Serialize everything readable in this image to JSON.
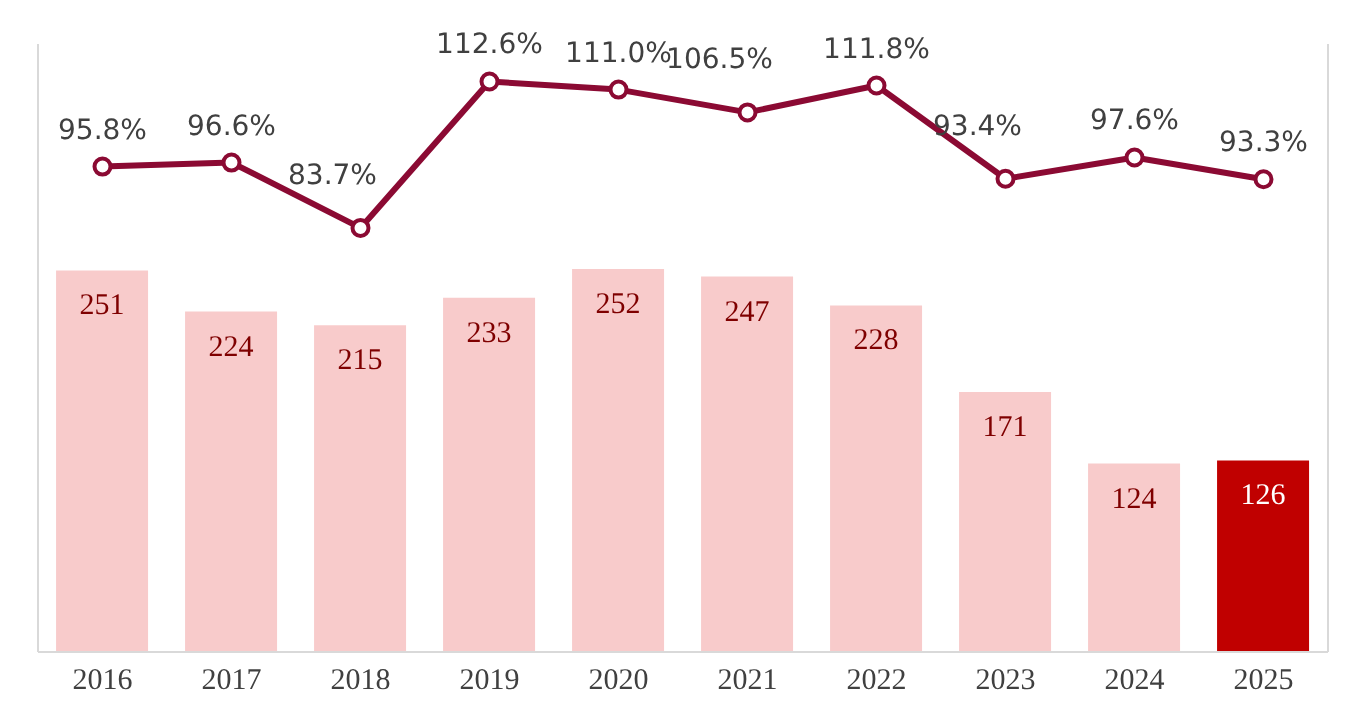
{
  "chart_data": {
    "type": "bar",
    "categories": [
      "2016",
      "2017",
      "2018",
      "2019",
      "2020",
      "2021",
      "2022",
      "2023",
      "2024",
      "2025"
    ],
    "series": [
      {
        "color": "#f8cbcb",
        "colors": [
          "#f8cbcb",
          "#f8cbcb",
          "#f8cbcb",
          "#f8cbcb",
          "#f8cbcb",
          "#f8cbcb",
          "#f8cbcb",
          "#f8cbcb",
          "#f8cbcb",
          "#c00000"
        ],
        "values": [
          251,
          224,
          215,
          233,
          252,
          247,
          228,
          171,
          124,
          126
        ],
        "value_labels": [
          "251",
          "224",
          "215",
          "233",
          "252",
          "247",
          "228",
          "171",
          "124",
          "126"
        ]
      },
      {
        "type": "line",
        "axis": "y2",
        "color": "#8b0a33",
        "values": [
          95.8,
          96.6,
          83.7,
          112.6,
          111.0,
          106.5,
          111.8,
          93.4,
          97.6,
          93.3
        ],
        "value_labels": [
          "95.8%",
          "96.6%",
          "83.7%",
          "112.6%",
          "111.0%",
          "106.5%",
          "111.8%",
          "93.4%",
          "97.6%",
          "93.3%"
        ]
      }
    ],
    "ylim": [
      0,
      400
    ],
    "y2lim": [
      0,
      120
    ],
    "tick_labels": "x",
    "grid": false,
    "legend": false,
    "marker": "circle",
    "line_style": "solid"
  }
}
